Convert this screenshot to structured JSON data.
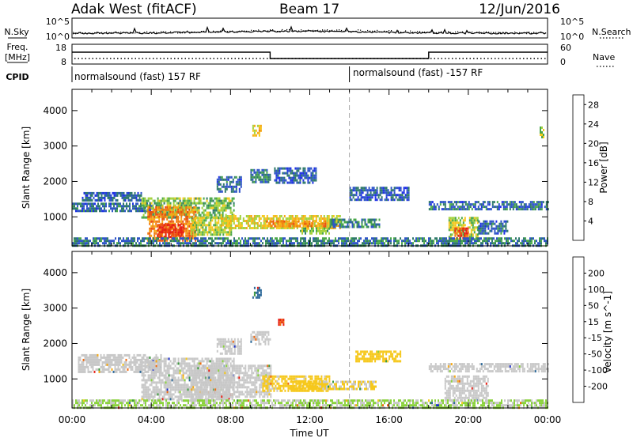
{
  "header": {
    "station": "Adak West (fitACF)",
    "beam": "Beam 17",
    "date": "12/Jun/2016"
  },
  "noise_panel": {
    "left_label": "N.Sky",
    "left_ticks": [
      "10^5",
      "10^0"
    ],
    "right_label": "N.Search",
    "right_ticks": [
      "10^5",
      "10^0"
    ]
  },
  "freq_panel": {
    "left_label_line1": "Freq.",
    "left_label_line2": "[MHz]",
    "left_ticks": [
      "18",
      "8"
    ],
    "right_label": "Nave",
    "right_ticks": [
      "60",
      "0"
    ],
    "freq_level_hours": [
      [
        0,
        10,
        "high"
      ],
      [
        10,
        18,
        "low"
      ],
      [
        18,
        24,
        "high"
      ]
    ]
  },
  "cpid": {
    "label": "CPID",
    "segments": [
      {
        "text": "normalsound (fast) 157 RF",
        "start_hour": 0
      },
      {
        "text": "normalsound (fast) -157 RF",
        "start_hour": 14
      }
    ]
  },
  "x_axis": {
    "label": "Time UT",
    "ticks": [
      "00:00",
      "04:00",
      "08:00",
      "12:00",
      "16:00",
      "20:00",
      "00:00"
    ],
    "tick_hours": [
      0,
      4,
      8,
      12,
      16,
      20,
      24
    ],
    "cpid_change_hour": 14
  },
  "chart_data": [
    {
      "type": "heatmap",
      "title": "",
      "quantity": "Power",
      "ylabel": "Slant Range [km]",
      "xlabel": "Time UT",
      "xlim_hours": [
        0,
        24
      ],
      "ylim_km": [
        180,
        4600
      ],
      "yticks": [
        "1000",
        "2000",
        "3000",
        "4000"
      ],
      "ytick_values": [
        1000,
        2000,
        3000,
        4000
      ],
      "colorbar": {
        "label": "Power [dB]",
        "ticks": [
          "4",
          "8",
          "12",
          "16",
          "20",
          "24",
          "28"
        ],
        "tick_values": [
          4,
          8,
          12,
          16,
          20,
          24,
          28
        ],
        "range": [
          0,
          30
        ],
        "colors": [
          "#1f30e6",
          "#2f55c8",
          "#2f7a6a",
          "#4aa84a",
          "#a4d23c",
          "#f6c81c",
          "#f6a814",
          "#f07a10",
          "#ea5010",
          "#e61e14"
        ]
      },
      "echo_regions": [
        {
          "t0": 0.0,
          "t1": 4.5,
          "r0": 1150,
          "r1": 1400,
          "value": 6
        },
        {
          "t0": 0.5,
          "t1": 3.5,
          "r0": 1450,
          "r1": 1700,
          "value": 5
        },
        {
          "t0": 3.5,
          "t1": 8.2,
          "r0": 1000,
          "r1": 1550,
          "value": 12
        },
        {
          "t0": 3.8,
          "t1": 6.2,
          "r0": 350,
          "r1": 1300,
          "value": 22
        },
        {
          "t0": 4.3,
          "t1": 5.6,
          "r0": 400,
          "r1": 800,
          "value": 28
        },
        {
          "t0": 6.0,
          "t1": 8.0,
          "r0": 500,
          "r1": 1000,
          "value": 14
        },
        {
          "t0": 7.5,
          "t1": 13.5,
          "r0": 650,
          "r1": 1050,
          "value": 16
        },
        {
          "t0": 9.8,
          "t1": 12.8,
          "r0": 700,
          "r1": 900,
          "value": 22
        },
        {
          "t0": 11.5,
          "t1": 13.0,
          "r0": 500,
          "r1": 700,
          "value": 12
        },
        {
          "t0": 13.0,
          "t1": 15.5,
          "r0": 700,
          "r1": 950,
          "value": 8
        },
        {
          "t0": 7.3,
          "t1": 8.5,
          "r0": 1700,
          "r1": 2150,
          "value": 6
        },
        {
          "t0": 9.0,
          "t1": 10.0,
          "r0": 1950,
          "r1": 2350,
          "value": 7
        },
        {
          "t0": 10.2,
          "t1": 12.3,
          "r0": 1950,
          "r1": 2400,
          "value": 5
        },
        {
          "t0": 14.0,
          "t1": 17.0,
          "r0": 1500,
          "r1": 1850,
          "value": 5
        },
        {
          "t0": 18.0,
          "t1": 24.0,
          "r0": 1200,
          "r1": 1450,
          "value": 6
        },
        {
          "t0": 19.0,
          "t1": 20.5,
          "r0": 350,
          "r1": 1000,
          "value": 14
        },
        {
          "t0": 19.3,
          "t1": 20.0,
          "r0": 400,
          "r1": 700,
          "value": 26
        },
        {
          "t0": 20.5,
          "t1": 22.0,
          "r0": 500,
          "r1": 900,
          "value": 6
        },
        {
          "t0": 0.0,
          "t1": 24.0,
          "r0": 180,
          "r1": 420,
          "value": 7
        },
        {
          "t0": 9.1,
          "t1": 9.5,
          "r0": 3300,
          "r1": 3600,
          "value": 18
        },
        {
          "t0": 23.6,
          "t1": 23.8,
          "r0": 3250,
          "r1": 3550,
          "value": 14
        }
      ]
    },
    {
      "type": "heatmap",
      "title": "",
      "quantity": "Velocity",
      "ylabel": "Slant Range [km]",
      "xlabel": "Time UT",
      "xlim_hours": [
        0,
        24
      ],
      "ylim_km": [
        180,
        4600
      ],
      "yticks": [
        "1000",
        "2000",
        "3000",
        "4000"
      ],
      "ytick_values": [
        1000,
        2000,
        3000,
        4000
      ],
      "colorbar": {
        "label": "Velocity [m s^-1]",
        "ticks": [
          "200",
          "100",
          "50",
          "15",
          "-15",
          "-50",
          "-100",
          "-200"
        ],
        "tick_values": [
          200,
          100,
          50,
          15,
          -15,
          -50,
          -100,
          -200
        ],
        "range": [
          -250,
          250
        ],
        "colors": [
          "#e61e14",
          "#f06a10",
          "#f6a814",
          "#f6c81c",
          "#c8c8c8",
          "#8ad23c",
          "#3c9a3c",
          "#2f6a9a",
          "#1f30c8"
        ]
      },
      "echo_regions": [
        {
          "t0": 0.3,
          "t1": 4.5,
          "r0": 1200,
          "r1": 1700,
          "value": 0
        },
        {
          "t0": 3.5,
          "t1": 8.2,
          "r0": 450,
          "r1": 1600,
          "value": 0
        },
        {
          "t0": 6.0,
          "t1": 10.0,
          "r0": 500,
          "r1": 1400,
          "value": 5
        },
        {
          "t0": 9.6,
          "t1": 13.0,
          "r0": 650,
          "r1": 1100,
          "value": -40
        },
        {
          "t0": 11.0,
          "t1": 12.8,
          "r0": 700,
          "r1": 950,
          "value": -60
        },
        {
          "t0": 12.5,
          "t1": 15.3,
          "r0": 700,
          "r1": 950,
          "value": -30
        },
        {
          "t0": 7.3,
          "t1": 8.5,
          "r0": 1700,
          "r1": 2150,
          "value": 0
        },
        {
          "t0": 9.0,
          "t1": 10.0,
          "r0": 1950,
          "r1": 2350,
          "value": 0
        },
        {
          "t0": 14.3,
          "t1": 16.6,
          "r0": 1500,
          "r1": 1800,
          "value": -45
        },
        {
          "t0": 18.0,
          "t1": 24.0,
          "r0": 1200,
          "r1": 1450,
          "value": 0
        },
        {
          "t0": 18.8,
          "t1": 21.0,
          "r0": 400,
          "r1": 1100,
          "value": 0
        },
        {
          "t0": 0.0,
          "t1": 24.0,
          "r0": 180,
          "r1": 420,
          "value": 30
        },
        {
          "t0": 9.1,
          "t1": 9.5,
          "r0": 3300,
          "r1": 3600,
          "value": 150
        },
        {
          "t0": 10.4,
          "t1": 10.7,
          "r0": 2550,
          "r1": 2700,
          "value": -200
        }
      ]
    }
  ]
}
